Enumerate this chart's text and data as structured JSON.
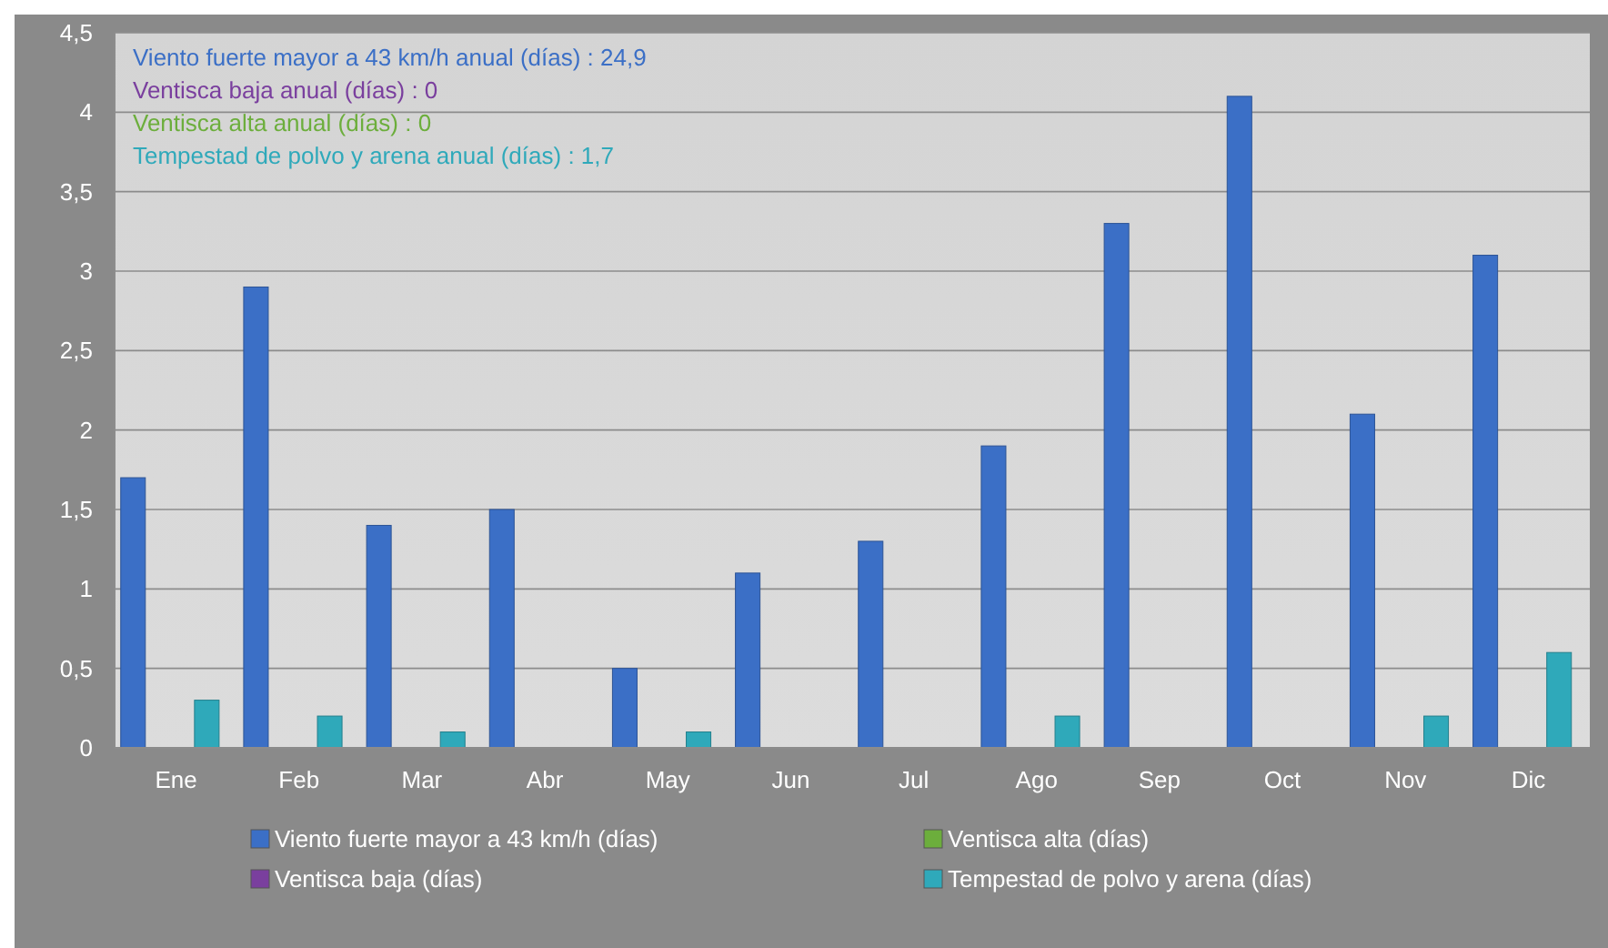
{
  "chart_data": {
    "type": "bar",
    "categories": [
      "Ene",
      "Feb",
      "Mar",
      "Abr",
      "May",
      "Jun",
      "Jul",
      "Ago",
      "Sep",
      "Oct",
      "Nov",
      "Dic"
    ],
    "series": [
      {
        "name": "Viento fuerte mayor a 43 km/h (días)",
        "color": "#3b6fc6",
        "values": [
          1.7,
          2.9,
          1.4,
          1.5,
          0.5,
          1.1,
          1.3,
          1.9,
          3.3,
          4.1,
          2.1,
          3.1
        ]
      },
      {
        "name": "Ventisca baja (días)",
        "color": "#7a3f9e",
        "values": [
          0,
          0,
          0,
          0,
          0,
          0,
          0,
          0,
          0,
          0,
          0,
          0
        ]
      },
      {
        "name": "Ventisca alta (días)",
        "color": "#6cae3c",
        "values": [
          0,
          0,
          0,
          0,
          0,
          0,
          0,
          0,
          0,
          0,
          0,
          0
        ]
      },
      {
        "name": "Tempestad de polvo y arena (días)",
        "color": "#2fa9ba",
        "values": [
          0.3,
          0.2,
          0.1,
          0,
          0.1,
          0,
          0,
          0.2,
          0,
          0,
          0.2,
          0.6
        ]
      }
    ],
    "ylim": [
      0,
      4.5
    ],
    "yticks": [
      0,
      {
        "value": 0.5,
        "label": "0,5"
      },
      1,
      {
        "value": 1.5,
        "label": "1,5"
      },
      2,
      {
        "value": 2.5,
        "label": "2,5"
      },
      3,
      {
        "value": 3.5,
        "label": "3,5"
      },
      4,
      {
        "value": 4.5,
        "label": "4,5"
      }
    ],
    "grid": "y",
    "legend": "bottom",
    "annotations": [
      "Viento fuerte mayor a 43 km/h anual (días) : 24,9",
      "Ventisca baja anual (días) : 0",
      "Ventisca alta anual (días) : 0",
      "Tempestad de polvo y arena anual (días) : 1,7"
    ]
  }
}
